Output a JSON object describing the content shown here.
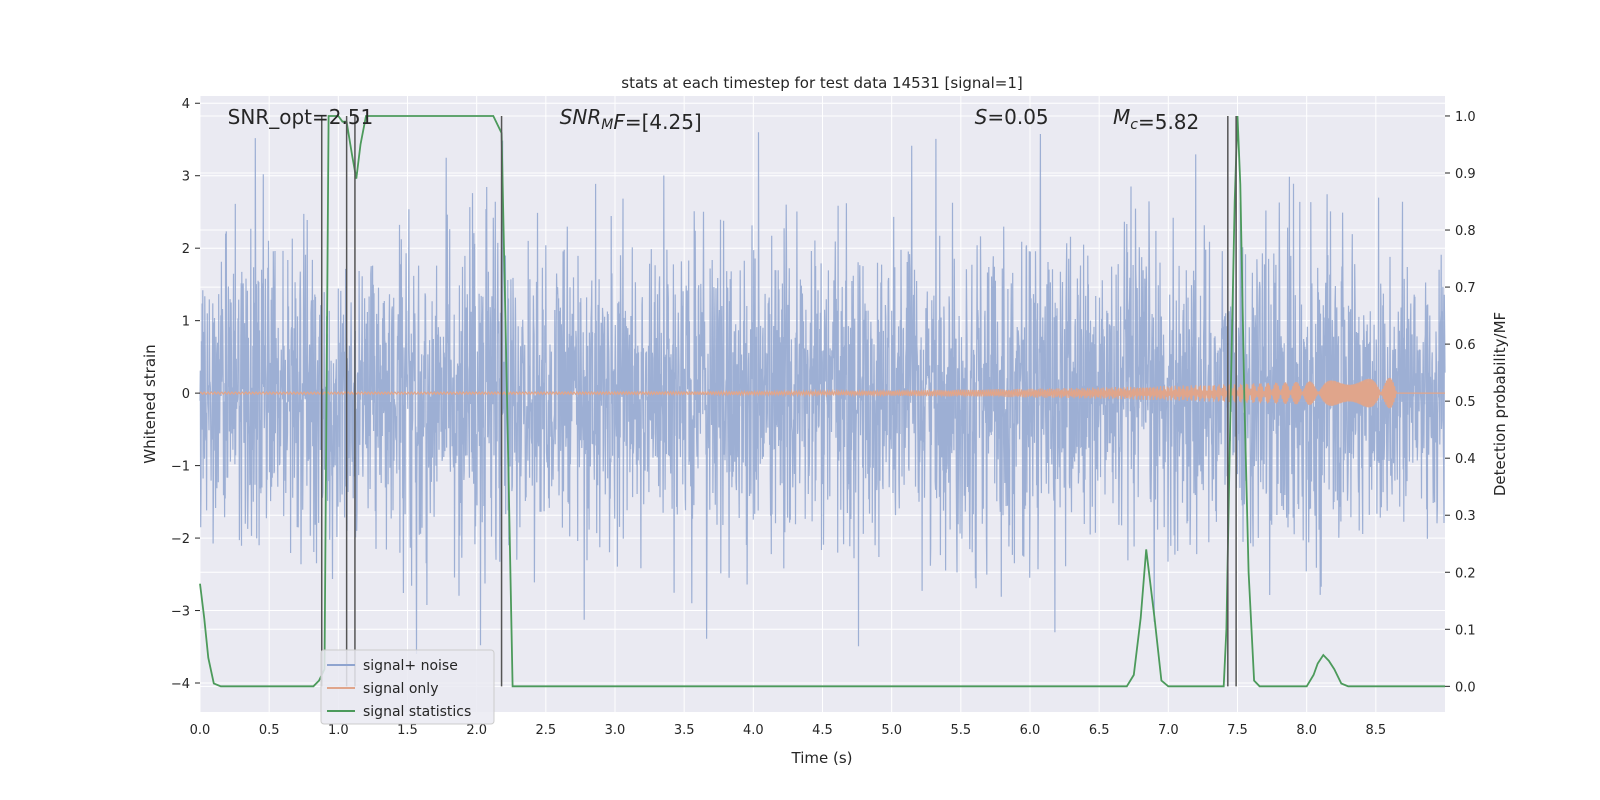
{
  "chart_data": {
    "type": "line",
    "title": "stats at each timestep for test data 14531 [signal=1]",
    "xlabel": "Time (s)",
    "ylabel": "Whitened strain",
    "y2label": "Detection probability/MF",
    "xlim": [
      0,
      9.0
    ],
    "ylim": [
      -4.4,
      4.1
    ],
    "y2lim": [
      -0.045,
      1.035
    ],
    "x_ticks": [
      "0.0",
      "0.5",
      "1.0",
      "1.5",
      "2.0",
      "2.5",
      "3.0",
      "3.5",
      "4.0",
      "4.5",
      "5.0",
      "5.5",
      "6.0",
      "6.5",
      "7.0",
      "7.5",
      "8.0",
      "8.5"
    ],
    "x_tick_values": [
      0,
      0.5,
      1,
      1.5,
      2,
      2.5,
      3,
      3.5,
      4,
      4.5,
      5,
      5.5,
      6,
      6.5,
      7,
      7.5,
      8,
      8.5
    ],
    "y_ticks": [
      "−4",
      "−3",
      "−2",
      "−1",
      "0",
      "1",
      "2",
      "3",
      "4"
    ],
    "y_tick_values": [
      -4,
      -3,
      -2,
      -1,
      0,
      1,
      2,
      3,
      4
    ],
    "y2_ticks": [
      "0.0",
      "0.1",
      "0.2",
      "0.3",
      "0.4",
      "0.5",
      "0.6",
      "0.7",
      "0.8",
      "0.9",
      "1.0"
    ],
    "y2_tick_values": [
      0,
      0.1,
      0.2,
      0.3,
      0.4,
      0.5,
      0.6,
      0.7,
      0.8,
      0.9,
      1.0
    ],
    "grid": true,
    "legend_position": "lower-left",
    "annotations": [
      {
        "parts": [
          {
            "t": "SNR_opt=2.51",
            "i": false
          }
        ],
        "x": 0.2
      },
      {
        "parts": [
          {
            "t": "SNR",
            "i": true
          },
          {
            "t": "M",
            "i": true,
            "sub": true
          },
          {
            "t": "F",
            "i": true
          },
          {
            "t": "=[4.25]",
            "i": false
          }
        ],
        "x": 2.6
      },
      {
        "parts": [
          {
            "t": "S",
            "i": true
          },
          {
            "t": "=0.05",
            "i": false
          }
        ],
        "x": 5.6
      },
      {
        "parts": [
          {
            "t": "M",
            "i": true
          },
          {
            "t": "c",
            "i": true,
            "sub": true
          },
          {
            "t": "=5.82",
            "i": false
          }
        ],
        "x": 6.6
      }
    ],
    "series": [
      {
        "name": "signal+ noise",
        "color": "#8fa4cf",
        "kind": "noise",
        "typical_range": [
          -1.7,
          1.4
        ],
        "extreme_range": [
          -3.6,
          3.6
        ]
      },
      {
        "name": "signal only",
        "color": "#e0a58b",
        "kind": "chirp",
        "x_end": 8.65,
        "amp_end": 0.2
      },
      {
        "name": "signal statistics",
        "color": "#4c9a5b",
        "kind": "line",
        "axis": "right",
        "x": [
          0.0,
          0.03,
          0.06,
          0.1,
          0.15,
          0.3,
          0.5,
          0.7,
          0.82,
          0.86,
          0.9,
          0.93,
          0.96,
          1.0,
          1.03,
          1.06,
          1.1,
          1.13,
          1.16,
          1.2,
          1.4,
          1.7,
          2.0,
          2.12,
          2.18,
          2.22,
          2.26,
          2.3,
          2.4,
          3.0,
          4.0,
          5.0,
          6.0,
          6.5,
          6.7,
          6.75,
          6.8,
          6.84,
          6.9,
          6.95,
          7.0,
          7.3,
          7.4,
          7.42,
          7.45,
          7.48,
          7.5,
          7.52,
          7.55,
          7.58,
          7.62,
          7.66,
          7.7,
          7.8,
          7.9,
          8.0,
          8.05,
          8.08,
          8.12,
          8.16,
          8.2,
          8.25,
          8.3,
          8.5,
          8.7,
          8.9,
          9.0
        ],
        "y": [
          0.18,
          0.12,
          0.05,
          0.005,
          0.0,
          0.0,
          0.0,
          0.0,
          0.0,
          0.01,
          0.03,
          1.0,
          1.0,
          1.0,
          0.99,
          0.99,
          0.93,
          0.89,
          0.95,
          1.0,
          1.0,
          1.0,
          1.0,
          1.0,
          0.97,
          0.5,
          0.0,
          0.0,
          0.0,
          0.0,
          0.0,
          0.0,
          0.0,
          0.0,
          0.0,
          0.02,
          0.12,
          0.24,
          0.12,
          0.01,
          0.0,
          0.0,
          0.0,
          0.1,
          0.5,
          0.85,
          1.0,
          0.88,
          0.5,
          0.2,
          0.01,
          0.0,
          0.0,
          0.0,
          0.0,
          0.0,
          0.02,
          0.04,
          0.055,
          0.045,
          0.03,
          0.005,
          0.0,
          0.0,
          0.0,
          0.0,
          0.0
        ]
      },
      {
        "name": "",
        "color": "#555555",
        "kind": "markers",
        "axis": "right",
        "x": [
          0.88,
          1.06,
          1.12,
          2.18,
          7.43,
          7.49
        ],
        "y_range": [
          0.0,
          1.0
        ]
      }
    ]
  }
}
